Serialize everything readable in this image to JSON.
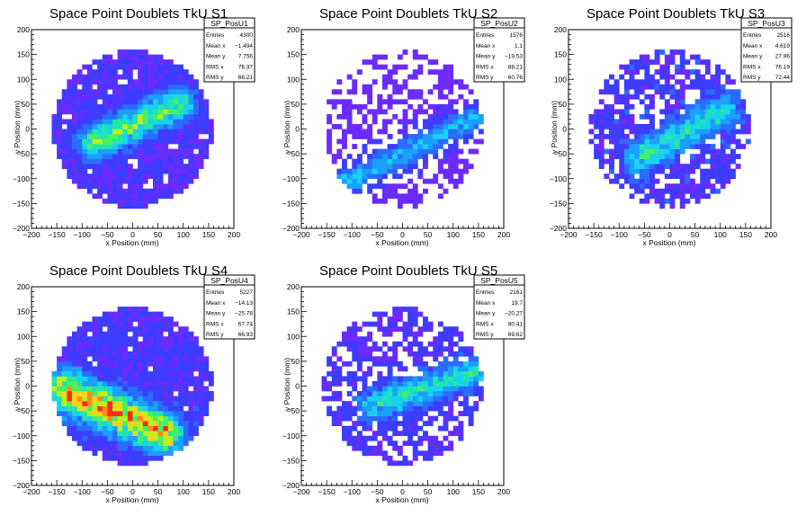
{
  "x_tick_labels": [
    "−200",
    "−150",
    "−100",
    "−50",
    "0",
    "50",
    "100",
    "150",
    "200"
  ],
  "y_tick_labels": [
    "−200",
    "−150",
    "−100",
    "−50",
    "0",
    "50",
    "100",
    "150",
    "200"
  ],
  "colors": {
    "palette": [
      "#6b2bff",
      "#3d3cff",
      "#2a6cff",
      "#1aa0ff",
      "#18d2f0",
      "#22e6a8",
      "#48f060",
      "#b8f020",
      "#ffd21a",
      "#ff8a1a",
      "#ff2a1a"
    ],
    "frame": "#000000"
  },
  "chart_data": [
    {
      "type": "heatmap",
      "title": "Space Point Doublets TkU S1",
      "xlabel": "x Position (mm)",
      "ylabel": "y Position (mm)",
      "xlim": [
        -200,
        200
      ],
      "ylim": [
        -200,
        200
      ],
      "grid": false,
      "bin_width_mm": 10,
      "stats": {
        "name": "SP_PosU1",
        "rows": [
          {
            "label": "Entries",
            "value": "4300"
          },
          {
            "label": "Mean x",
            "value": "−1.494"
          },
          {
            "label": "Mean y",
            "value": "7.756"
          },
          {
            "label": "RMS x",
            "value": "76.37"
          },
          {
            "label": "RMS y",
            "value": "66.21"
          }
        ]
      },
      "pattern": {
        "seed": 11,
        "base_fill": 0.92,
        "base_level": 0.6,
        "band": {
          "x0": -80,
          "y0": -30,
          "x1": 90,
          "y1": 50,
          "width": 22,
          "peak": 7
        }
      }
    },
    {
      "type": "heatmap",
      "title": "Space Point Doublets TkU S2",
      "xlabel": "x Position (mm)",
      "ylabel": "y Position (mm)",
      "xlim": [
        -200,
        200
      ],
      "ylim": [
        -200,
        200
      ],
      "grid": false,
      "bin_width_mm": 10,
      "stats": {
        "name": "SP_PosU2",
        "rows": [
          {
            "label": "Entries",
            "value": "1576"
          },
          {
            "label": "Mean x",
            "value": "1.1"
          },
          {
            "label": "Mean y",
            "value": "−19.53"
          },
          {
            "label": "RMS x",
            "value": "88.21"
          },
          {
            "label": "RMS y",
            "value": "60.76"
          }
        ]
      },
      "pattern": {
        "seed": 23,
        "base_fill": 0.45,
        "base_level": 0.3,
        "band": {
          "x0": -120,
          "y0": -110,
          "x1": 160,
          "y1": 30,
          "width": 18,
          "peak": 4
        }
      }
    },
    {
      "type": "heatmap",
      "title": "Space Point Doublets TkU S3",
      "xlabel": "x Position (mm)",
      "ylabel": "y Position (mm)",
      "xlim": [
        -200,
        200
      ],
      "ylim": [
        -200,
        200
      ],
      "grid": false,
      "bin_width_mm": 10,
      "stats": {
        "name": "SP_PosU3",
        "rows": [
          {
            "label": "Entries",
            "value": "2516"
          },
          {
            "label": "Mean x",
            "value": "4.619"
          },
          {
            "label": "Mean y",
            "value": "27.96"
          },
          {
            "label": "RMS x",
            "value": "76.19"
          },
          {
            "label": "RMS y",
            "value": "72.44"
          }
        ]
      },
      "pattern": {
        "seed": 37,
        "base_fill": 0.72,
        "base_level": 1.0,
        "band": {
          "x0": -60,
          "y0": -60,
          "x1": 110,
          "y1": 40,
          "width": 20,
          "peak": 5
        }
      }
    },
    {
      "type": "heatmap",
      "title": "Space Point Doublets TkU S4",
      "xlabel": "x Position (mm)",
      "ylabel": "y Position (mm)",
      "xlim": [
        -200,
        200
      ],
      "ylim": [
        -200,
        200
      ],
      "grid": false,
      "bin_width_mm": 10,
      "stats": {
        "name": "SP_PosU4",
        "rows": [
          {
            "label": "Entries",
            "value": "5227"
          },
          {
            "label": "Mean x",
            "value": "−14.13"
          },
          {
            "label": "Mean y",
            "value": "−25.78"
          },
          {
            "label": "RMS x",
            "value": "67.74"
          },
          {
            "label": "RMS y",
            "value": "66.93"
          }
        ]
      },
      "pattern": {
        "seed": 53,
        "base_fill": 0.95,
        "base_level": 0.9,
        "band": {
          "x0": -130,
          "y0": -10,
          "x1": 60,
          "y1": -95,
          "width": 26,
          "peak": 10
        }
      }
    },
    {
      "type": "heatmap",
      "title": "Space Point Doublets TkU S5",
      "xlabel": "x Position (mm)",
      "ylabel": "y Position (mm)",
      "xlim": [
        -200,
        200
      ],
      "ylim": [
        -200,
        200
      ],
      "grid": false,
      "bin_width_mm": 10,
      "stats": {
        "name": "SP_PosU5",
        "rows": [
          {
            "label": "Entries",
            "value": "2161"
          },
          {
            "label": "Mean x",
            "value": "19.7"
          },
          {
            "label": "Mean y",
            "value": "−20.27"
          },
          {
            "label": "RMS x",
            "value": "80.41"
          },
          {
            "label": "RMS y",
            "value": "69.62"
          }
        ]
      },
      "pattern": {
        "seed": 71,
        "base_fill": 0.62,
        "base_level": 0.8,
        "band": {
          "x0": -60,
          "y0": -40,
          "x1": 170,
          "y1": 40,
          "width": 20,
          "peak": 5
        }
      }
    }
  ]
}
